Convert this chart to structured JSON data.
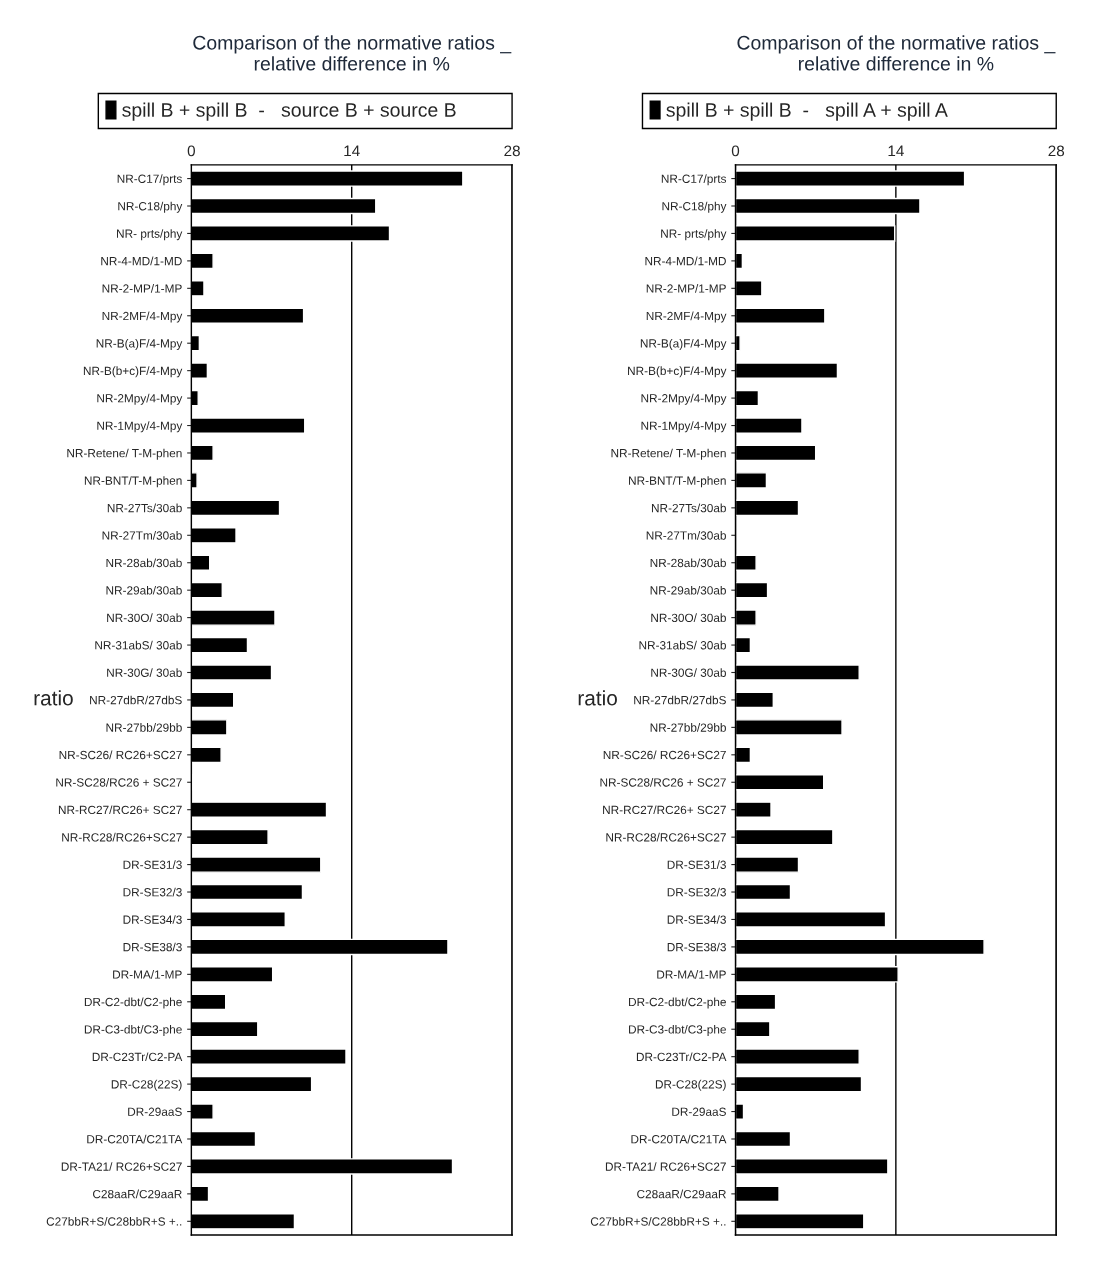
{
  "chart_data": [
    {
      "type": "bar",
      "orientation": "horizontal",
      "title": "Comparison of the normative ratios _\nrelative difference in %",
      "ylabel": "ratio",
      "categories": [
        "NR-C17/prts",
        "NR-C18/phy",
        "NR- prts/phy",
        "NR-4-MD/1-MD",
        "NR-2-MP/1-MP",
        "NR-2MF/4-Mpy",
        "NR-B(a)F/4-Mpy",
        "NR-B(b+c)F/4-Mpy",
        "NR-2Mpy/4-Mpy",
        "NR-1Mpy/4-Mpy",
        "NR-Retene/ T-M-phen",
        "NR-BNT/T-M-phen",
        "NR-27Ts/30ab",
        "NR-27Tm/30ab",
        "NR-28ab/30ab",
        "NR-29ab/30ab",
        "NR-30O/ 30ab",
        "NR-31abS/ 30ab",
        "NR-30G/ 30ab",
        "NR-27dbR/27dbS",
        "NR-27bb/29bb",
        "NR-SC26/ RC26+SC27",
        "NR-SC28/RC26 + SC27",
        "NR-RC27/RC26+ SC27",
        "NR-RC28/RC26+SC27",
        "DR-SE31/3",
        "DR-SE32/3",
        "DR-SE34/3",
        "DR-SE38/3",
        "DR-MA/1-MP",
        "DR-C2-dbt/C2-phe",
        "DR-C3-dbt/C3-phe",
        "DR-C23Tr/C2-PA",
        "DR-C28(22S)",
        "DR-29aaS",
        "DR-C20TA/C21TA",
        "DR-TA21/ RC26+SC27",
        "C28aaR/C29aaR",
        "C27bbR+S/C28bbR+S +.."
      ],
      "series": [
        {
          "name": "spill B + spill B  -   source B + source B",
          "color": "#000000",
          "values": [
            23.7,
            16.1,
            17.3,
            1.9,
            1.1,
            9.8,
            0.7,
            1.4,
            0.6,
            9.9,
            1.9,
            0.5,
            7.7,
            3.9,
            1.6,
            2.7,
            7.3,
            4.9,
            7.0,
            3.7,
            3.1,
            2.6,
            0.1,
            11.8,
            6.7,
            11.3,
            9.7,
            8.2,
            22.4,
            7.1,
            3.0,
            5.8,
            13.5,
            10.5,
            1.9,
            5.6,
            22.8,
            1.5,
            9.0
          ]
        }
      ],
      "xlim": [
        0,
        28
      ],
      "xticks": [
        0,
        14,
        28
      ],
      "grid": "x",
      "legend": "top"
    },
    {
      "type": "bar",
      "orientation": "horizontal",
      "title": "Comparison of the normative ratios _\nrelative difference in %",
      "ylabel": "ratio",
      "categories": [
        "NR-C17/prts",
        "NR-C18/phy",
        "NR- prts/phy",
        "NR-4-MD/1-MD",
        "NR-2-MP/1-MP",
        "NR-2MF/4-Mpy",
        "NR-B(a)F/4-Mpy",
        "NR-B(b+c)F/4-Mpy",
        "NR-2Mpy/4-Mpy",
        "NR-1Mpy/4-Mpy",
        "NR-Retene/ T-M-phen",
        "NR-BNT/T-M-phen",
        "NR-27Ts/30ab",
        "NR-27Tm/30ab",
        "NR-28ab/30ab",
        "NR-29ab/30ab",
        "NR-30O/ 30ab",
        "NR-31abS/ 30ab",
        "NR-30G/ 30ab",
        "NR-27dbR/27dbS",
        "NR-27bb/29bb",
        "NR-SC26/ RC26+SC27",
        "NR-SC28/RC26 + SC27",
        "NR-RC27/RC26+ SC27",
        "NR-RC28/RC26+SC27",
        "DR-SE31/3",
        "DR-SE32/3",
        "DR-SE34/3",
        "DR-SE38/3",
        "DR-MA/1-MP",
        "DR-C2-dbt/C2-phe",
        "DR-C3-dbt/C3-phe",
        "DR-C23Tr/C2-PA",
        "DR-C28(22S)",
        "DR-29aaS",
        "DR-C20TA/C21TA",
        "DR-TA21/ RC26+SC27",
        "C28aaR/C29aaR",
        "C27bbR+S/C28bbR+S +.."
      ],
      "series": [
        {
          "name": "spill B + spill B  -   spill A + spill A",
          "color": "#000000",
          "values": [
            20.0,
            16.1,
            13.9,
            0.6,
            2.3,
            7.8,
            0.4,
            8.9,
            2.0,
            5.8,
            7.0,
            2.7,
            5.5,
            null,
            1.8,
            2.8,
            1.8,
            1.3,
            10.8,
            3.3,
            9.3,
            1.3,
            7.7,
            3.1,
            8.5,
            5.5,
            4.8,
            13.1,
            21.7,
            14.2,
            3.5,
            3.0,
            10.8,
            11.0,
            0.7,
            4.8,
            13.3,
            3.8,
            11.2
          ]
        }
      ],
      "xlim": [
        0,
        28
      ],
      "xticks": [
        0,
        14,
        28
      ],
      "grid": "x",
      "legend": "top"
    }
  ]
}
